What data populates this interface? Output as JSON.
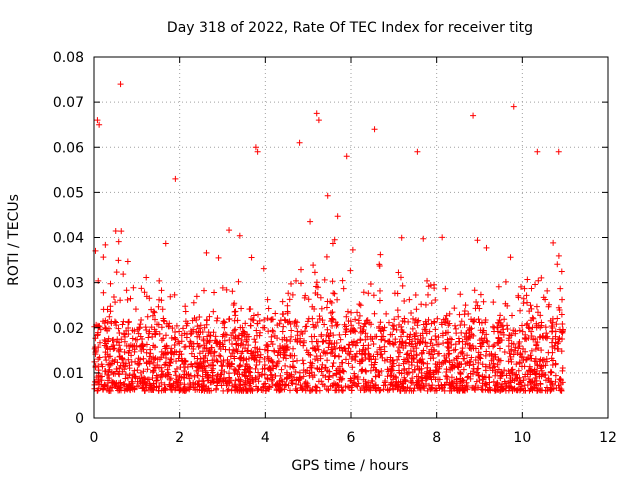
{
  "chart_data": {
    "type": "scatter",
    "title": "Day 318 of 2022, Rate Of TEC Index for receiver titg",
    "xlabel": "GPS time / hours",
    "ylabel": "ROTI / TECUs",
    "xlim": [
      0,
      12
    ],
    "ylim": [
      0,
      0.08
    ],
    "xticks": [
      0,
      2,
      4,
      6,
      8,
      10,
      12
    ],
    "yticks": [
      0,
      0.01,
      0.02,
      0.03,
      0.04,
      0.05,
      0.06,
      0.07,
      0.08
    ],
    "xtick_labels": [
      "0",
      "2",
      "4",
      "6",
      "8",
      "10",
      "12"
    ],
    "ytick_labels": [
      "0",
      "0.01",
      "0.02",
      "0.03",
      "0.04",
      "0.05",
      "0.06",
      "0.07",
      "0.08"
    ],
    "grid": true,
    "marker": "+",
    "color": "#ff0000",
    "series": [
      {
        "name": "ROTI",
        "x_range": [
          0,
          10.95
        ],
        "point_count": 2600,
        "typical_range": [
          0.004,
          0.025
        ],
        "highlights": [
          {
            "x": 0.62,
            "y": 0.074
          },
          {
            "x": 9.8,
            "y": 0.069
          },
          {
            "x": 0.08,
            "y": 0.066
          },
          {
            "x": 0.12,
            "y": 0.065
          },
          {
            "x": 5.2,
            "y": 0.0675
          },
          {
            "x": 5.25,
            "y": 0.066
          },
          {
            "x": 8.85,
            "y": 0.067
          },
          {
            "x": 3.78,
            "y": 0.06
          },
          {
            "x": 3.82,
            "y": 0.059
          },
          {
            "x": 6.55,
            "y": 0.064
          },
          {
            "x": 10.85,
            "y": 0.059
          },
          {
            "x": 10.35,
            "y": 0.059
          },
          {
            "x": 1.9,
            "y": 0.053
          },
          {
            "x": 4.8,
            "y": 0.061
          },
          {
            "x": 5.9,
            "y": 0.058
          },
          {
            "x": 7.55,
            "y": 0.059
          }
        ]
      }
    ]
  }
}
